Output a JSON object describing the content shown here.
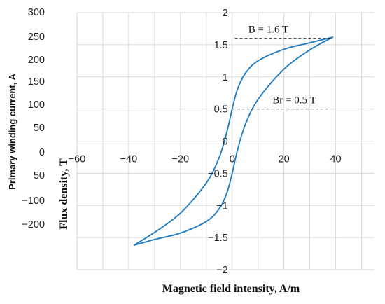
{
  "chart_data": {
    "type": "line",
    "title": "",
    "xlabel": "Magnetic field intensity, A/m",
    "ylabel": "Flux density, T",
    "secondary_ylabel": "Primary winding current, A",
    "xlim": [
      -60,
      55
    ],
    "ylim": [
      -2,
      2
    ],
    "x_ticks": [
      "−60",
      "−40",
      "−20",
      "0",
      "20",
      "40"
    ],
    "y_ticks": [
      "−2",
      "−1.5",
      "−1",
      "−0.5",
      "0",
      "0.5",
      "1",
      "1.5",
      "2"
    ],
    "secondary_y_ticks": [
      "300",
      "250",
      "200",
      "150",
      "100",
      "50",
      "0",
      "50",
      "−100",
      "−200"
    ],
    "grid": true,
    "legend": "none",
    "series": [
      {
        "color": "#1a7bc3",
        "x": [
          39,
          30,
          20,
          10,
          5,
          2,
          0,
          -2,
          -5,
          -10,
          -20,
          -30,
          -38
        ],
        "y": [
          1.62,
          1.53,
          1.43,
          1.25,
          1.05,
          0.8,
          0.5,
          0.15,
          -0.25,
          -0.65,
          -1.12,
          -1.42,
          -1.62
        ]
      },
      {
        "color": "#1a7bc3",
        "x": [
          -38,
          -30,
          -20,
          -10,
          -5,
          -2,
          0,
          2,
          5,
          10,
          20,
          30,
          39
        ],
        "y": [
          -1.62,
          -1.53,
          -1.43,
          -1.25,
          -1.05,
          -0.8,
          -0.5,
          -0.15,
          0.25,
          0.65,
          1.12,
          1.42,
          1.62
        ]
      }
    ],
    "annotations": [
      {
        "text": "B = 1.6 T",
        "x": 14,
        "y": 1.6
      },
      {
        "text": "Br = 0.5 T",
        "x": 24,
        "y": 0.5
      }
    ]
  }
}
